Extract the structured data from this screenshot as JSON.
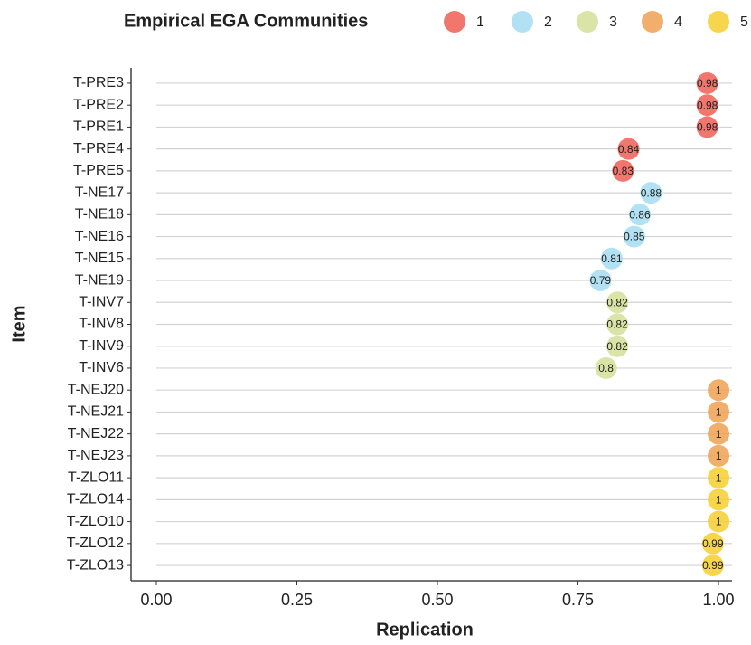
{
  "chart_data": {
    "type": "dot",
    "legend_title": "Empirical EGA Communities",
    "xlabel": "Replication",
    "ylabel": "Item",
    "categories": [
      "T-PRE3",
      "T-PRE2",
      "T-PRE1",
      "T-PRE4",
      "T-PRE5",
      "T-NE17",
      "T-NE18",
      "T-NE16",
      "T-NE15",
      "T-NE19",
      "T-INV7",
      "T-INV8",
      "T-INV9",
      "T-INV6",
      "T-NEJ20",
      "T-NEJ21",
      "T-NEJ22",
      "T-NEJ23",
      "T-ZLO11",
      "T-ZLO14",
      "T-ZLO10",
      "T-ZLO12",
      "T-ZLO13"
    ],
    "series": [
      {
        "name": "1",
        "color": "#ef5e55",
        "values": [
          0.98,
          0.98,
          0.98,
          0.84,
          0.83,
          null,
          null,
          null,
          null,
          null,
          null,
          null,
          null,
          null,
          null,
          null,
          null,
          null,
          null,
          null,
          null,
          null,
          null
        ]
      },
      {
        "name": "2",
        "color": "#a3dcf0",
        "values": [
          null,
          null,
          null,
          null,
          null,
          0.88,
          0.86,
          0.85,
          0.81,
          0.79,
          null,
          null,
          null,
          null,
          null,
          null,
          null,
          null,
          null,
          null,
          null,
          null,
          null
        ]
      },
      {
        "name": "3",
        "color": "#d2df96",
        "values": [
          null,
          null,
          null,
          null,
          null,
          null,
          null,
          null,
          null,
          null,
          0.82,
          0.82,
          0.82,
          0.8,
          null,
          null,
          null,
          null,
          null,
          null,
          null,
          null,
          null
        ]
      },
      {
        "name": "4",
        "color": "#f0a152",
        "values": [
          null,
          null,
          null,
          null,
          null,
          null,
          null,
          null,
          null,
          null,
          null,
          null,
          null,
          null,
          1,
          1,
          1,
          1,
          null,
          null,
          null,
          null,
          null
        ]
      },
      {
        "name": "5",
        "color": "#f6cf2e",
        "values": [
          null,
          null,
          null,
          null,
          null,
          null,
          null,
          null,
          null,
          null,
          null,
          null,
          null,
          null,
          null,
          null,
          null,
          null,
          1,
          1,
          1,
          0.99,
          0.99
        ]
      }
    ],
    "xlim": [
      -0.045,
      1.024
    ],
    "xticks": [
      {
        "value": 0,
        "label": "0.00"
      },
      {
        "value": 0.25,
        "label": "0.25"
      },
      {
        "value": 0.5,
        "label": "0.50"
      },
      {
        "value": 0.75,
        "label": "0.75"
      },
      {
        "value": 1,
        "label": "1.00"
      }
    ],
    "legend_position": "top"
  }
}
